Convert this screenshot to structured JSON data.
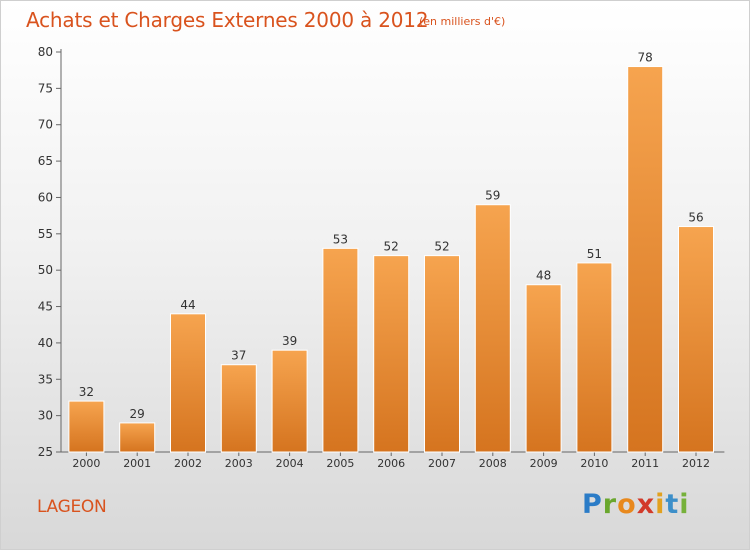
{
  "header": {
    "title": "Achats et Charges Externes 2000 à 2012",
    "unit": "(en milliers d'€)"
  },
  "footer": {
    "commune": "LAGEON",
    "logo_letters": [
      "P",
      "r",
      "o",
      "x",
      "i",
      "t",
      "i"
    ]
  },
  "colors": {
    "title": "#d9531e",
    "bar_top": "#f6a44f",
    "bar_bottom": "#d5741f",
    "axis": "#666666"
  },
  "chart_data": {
    "type": "bar",
    "title": "Achats et Charges Externes 2000 à 2012",
    "subtitle": "(en milliers d'€)",
    "xlabel": "",
    "ylabel": "",
    "categories": [
      "2000",
      "2001",
      "2002",
      "2003",
      "2004",
      "2005",
      "2006",
      "2007",
      "2008",
      "2009",
      "2010",
      "2011",
      "2012"
    ],
    "values": [
      32,
      29,
      44,
      37,
      39,
      53,
      52,
      52,
      59,
      48,
      51,
      78,
      56
    ],
    "ylim": [
      25,
      80
    ],
    "yticks": [
      25,
      30,
      35,
      40,
      45,
      50,
      55,
      60,
      65,
      70,
      75,
      80
    ],
    "grid": false,
    "legend": "none"
  }
}
